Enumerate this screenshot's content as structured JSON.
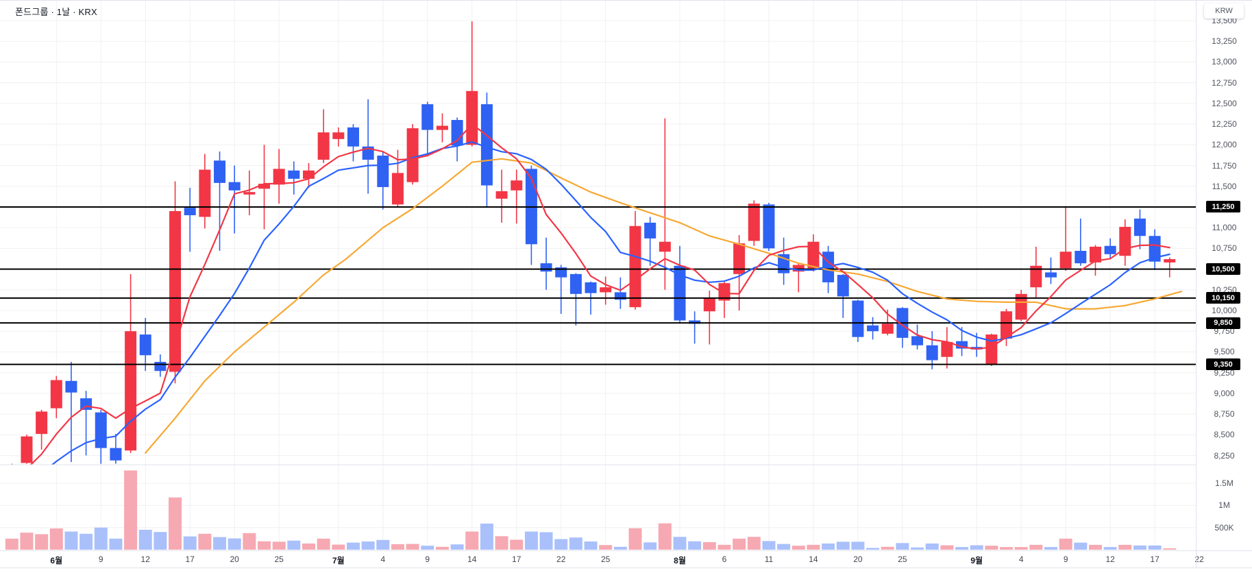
{
  "header": {
    "title": "폰드그룹 · 1날 · KRX"
  },
  "axis": {
    "currency_label": "KRW",
    "price_ticks": [
      {
        "label": "13,500",
        "value": 13500
      },
      {
        "label": "13,250",
        "value": 13250
      },
      {
        "label": "13,000",
        "value": 13000
      },
      {
        "label": "12,750",
        "value": 12750
      },
      {
        "label": "12,500",
        "value": 12500
      },
      {
        "label": "12,250",
        "value": 12250
      },
      {
        "label": "12,000",
        "value": 12000
      },
      {
        "label": "11,750",
        "value": 11750
      },
      {
        "label": "11,500",
        "value": 11500
      },
      {
        "label": "11,000",
        "value": 11000
      },
      {
        "label": "10,750",
        "value": 10750
      },
      {
        "label": "10,250",
        "value": 10250
      },
      {
        "label": "10,000",
        "value": 10000
      },
      {
        "label": "9,750",
        "value": 9750
      },
      {
        "label": "9,500",
        "value": 9500
      },
      {
        "label": "9,250",
        "value": 9250
      },
      {
        "label": "9,000",
        "value": 9000
      },
      {
        "label": "8,750",
        "value": 8750
      },
      {
        "label": "8,500",
        "value": 8500
      },
      {
        "label": "8,250",
        "value": 8250
      }
    ],
    "volume_ticks": [
      {
        "label": "1.5M",
        "value": 1500
      },
      {
        "label": "1M",
        "value": 1000
      },
      {
        "label": "500K",
        "value": 500
      }
    ],
    "time_ticks": [
      {
        "label": "6월",
        "index": 3,
        "month": true
      },
      {
        "label": "9",
        "index": 6
      },
      {
        "label": "12",
        "index": 9
      },
      {
        "label": "17",
        "index": 12
      },
      {
        "label": "20",
        "index": 15
      },
      {
        "label": "25",
        "index": 18
      },
      {
        "label": "7월",
        "index": 22,
        "month": true
      },
      {
        "label": "4",
        "index": 25
      },
      {
        "label": "9",
        "index": 28
      },
      {
        "label": "14",
        "index": 31
      },
      {
        "label": "17",
        "index": 34
      },
      {
        "label": "22",
        "index": 37
      },
      {
        "label": "25",
        "index": 40
      },
      {
        "label": "8월",
        "index": 45,
        "month": true
      },
      {
        "label": "6",
        "index": 48
      },
      {
        "label": "11",
        "index": 51
      },
      {
        "label": "14",
        "index": 54
      },
      {
        "label": "20",
        "index": 57
      },
      {
        "label": "25",
        "index": 60
      },
      {
        "label": "9월",
        "index": 65,
        "month": true
      },
      {
        "label": "4",
        "index": 68
      },
      {
        "label": "9",
        "index": 71
      },
      {
        "label": "12",
        "index": 74
      },
      {
        "label": "17",
        "index": 77
      },
      {
        "label": "22",
        "index": 80
      }
    ]
  },
  "colors": {
    "up": "#f23645",
    "down": "#2f62f2",
    "volume_up": "#f6a9b2",
    "volume_down": "#a9c0fb",
    "ma_fast": "#f23645",
    "ma_mid": "#2962ff",
    "ma_slow": "#f7a833",
    "level_line": "#000000",
    "level_tag_bg": "#000000",
    "level_tag_text": "#ffffff",
    "grid": "#f0f0f3",
    "separator": "#e0e3eb",
    "axis_text": "#50535e"
  },
  "chart_data": {
    "type": "candlestick",
    "title": "폰드그룹",
    "interval": "1날",
    "exchange": "KRX",
    "currency": "KRW",
    "grid": true,
    "price_axis_range": [
      8155,
      13740
    ],
    "volume_axis_range_k": [
      0,
      1940
    ],
    "levels": [
      {
        "label": "11,250",
        "price": 11250
      },
      {
        "label": "10,500",
        "price": 10500
      },
      {
        "label": "10,150",
        "price": 10150
      },
      {
        "label": "9,850",
        "price": 9850
      },
      {
        "label": "9,350",
        "price": 9350
      }
    ],
    "candles_format": [
      "open",
      "high",
      "low",
      "close",
      "volume_k"
    ],
    "candles": [
      [
        8060,
        8150,
        8000,
        8120,
        250
      ],
      [
        8160,
        8500,
        8150,
        8480,
        385
      ],
      [
        8510,
        8800,
        8320,
        8780,
        350
      ],
      [
        8820,
        9210,
        8700,
        9160,
        480
      ],
      [
        9150,
        9380,
        8170,
        9010,
        410
      ],
      [
        8940,
        9030,
        8250,
        8800,
        360
      ],
      [
        8770,
        8800,
        8150,
        8340,
        500
      ],
      [
        8340,
        8510,
        8150,
        8190,
        250
      ],
      [
        8310,
        10440,
        8280,
        9750,
        1790
      ],
      [
        9710,
        9910,
        9270,
        9460,
        450
      ],
      [
        9380,
        9470,
        9200,
        9270,
        400
      ],
      [
        9260,
        11560,
        9120,
        11200,
        1180
      ],
      [
        11240,
        11480,
        10710,
        11150,
        300
      ],
      [
        11130,
        11890,
        10990,
        11700,
        360
      ],
      [
        11810,
        11920,
        10720,
        11540,
        285
      ],
      [
        11550,
        11750,
        10930,
        11450,
        255
      ],
      [
        11400,
        11690,
        11150,
        11430,
        375
      ],
      [
        11470,
        12000,
        10980,
        11530,
        190
      ],
      [
        11520,
        11950,
        11290,
        11710,
        180
      ],
      [
        11690,
        11800,
        11400,
        11590,
        205
      ],
      [
        11590,
        11780,
        11480,
        11690,
        140
      ],
      [
        11820,
        12430,
        11780,
        12150,
        250
      ],
      [
        12070,
        12210,
        11980,
        12150,
        115
      ],
      [
        12210,
        12250,
        11800,
        11980,
        160
      ],
      [
        11980,
        12550,
        11410,
        11820,
        185
      ],
      [
        11870,
        11920,
        11220,
        11490,
        220
      ],
      [
        11280,
        11940,
        11250,
        11660,
        125
      ],
      [
        11550,
        12250,
        11520,
        12200,
        130
      ],
      [
        12490,
        12520,
        11860,
        12180,
        90
      ],
      [
        12180,
        12380,
        12030,
        12230,
        65
      ],
      [
        12300,
        12330,
        11800,
        11990,
        120
      ],
      [
        12000,
        13490,
        11980,
        12650,
        410
      ],
      [
        12490,
        12630,
        11240,
        11510,
        590
      ],
      [
        11350,
        11700,
        11060,
        11440,
        305
      ],
      [
        11450,
        11700,
        11050,
        11570,
        225
      ],
      [
        11710,
        11750,
        10550,
        10800,
        410
      ],
      [
        10570,
        10880,
        10250,
        10470,
        395
      ],
      [
        10520,
        10550,
        9960,
        10400,
        240
      ],
      [
        10440,
        10450,
        9820,
        10200,
        275
      ],
      [
        10340,
        10350,
        9950,
        10210,
        185
      ],
      [
        10220,
        10410,
        10070,
        10280,
        105
      ],
      [
        10220,
        10400,
        10020,
        10130,
        65
      ],
      [
        10040,
        11200,
        10010,
        11020,
        485
      ],
      [
        11060,
        11130,
        10540,
        10870,
        165
      ],
      [
        10710,
        12320,
        10250,
        10830,
        595
      ],
      [
        10540,
        10780,
        9850,
        9880,
        290
      ],
      [
        9880,
        9990,
        9600,
        9840,
        190
      ],
      [
        9990,
        10240,
        9590,
        10150,
        170
      ],
      [
        10120,
        10350,
        9910,
        10330,
        110
      ],
      [
        10440,
        10910,
        10000,
        10810,
        250
      ],
      [
        10840,
        11330,
        10780,
        11290,
        290
      ],
      [
        11280,
        11300,
        10720,
        10750,
        195
      ],
      [
        10680,
        10880,
        10310,
        10450,
        130
      ],
      [
        10470,
        10570,
        10220,
        10550,
        90
      ],
      [
        10510,
        10920,
        10470,
        10830,
        110
      ],
      [
        10710,
        10780,
        10210,
        10340,
        140
      ],
      [
        10430,
        10440,
        9910,
        10170,
        180
      ],
      [
        10120,
        10130,
        9620,
        9680,
        180
      ],
      [
        9820,
        9920,
        9650,
        9750,
        40
      ],
      [
        9720,
        10010,
        9700,
        9840,
        65
      ],
      [
        10030,
        10040,
        9550,
        9670,
        150
      ],
      [
        9690,
        9830,
        9530,
        9580,
        50
      ],
      [
        9580,
        9750,
        9290,
        9400,
        140
      ],
      [
        9440,
        9800,
        9300,
        9620,
        100
      ],
      [
        9630,
        9800,
        9450,
        9540,
        60
      ],
      [
        9560,
        9730,
        9440,
        9530,
        100
      ],
      [
        9350,
        9720,
        9330,
        9710,
        90
      ],
      [
        9660,
        10020,
        9570,
        9990,
        60
      ],
      [
        9890,
        10250,
        9870,
        10200,
        60
      ],
      [
        10280,
        10770,
        10150,
        10540,
        110
      ],
      [
        10460,
        10640,
        10320,
        10400,
        60
      ],
      [
        10510,
        11260,
        10480,
        10710,
        250
      ],
      [
        10720,
        11110,
        10540,
        10570,
        160
      ],
      [
        10580,
        10790,
        10420,
        10770,
        110
      ],
      [
        10780,
        10870,
        10630,
        10680,
        60
      ],
      [
        10660,
        11100,
        10540,
        11010,
        110
      ],
      [
        11110,
        11220,
        10740,
        10900,
        95
      ],
      [
        10900,
        10980,
        10490,
        10590,
        95
      ],
      [
        10580,
        10640,
        10400,
        10620,
        30
      ]
    ],
    "ma": {
      "fast_window": 5,
      "mid_window": 10,
      "ma_seed_closes": [
        7600,
        7650,
        7700,
        7750,
        7800,
        7850,
        7900,
        7950,
        8000
      ],
      "slow_samples": [
        [
          9,
          8280
        ],
        [
          11,
          8700
        ],
        [
          13,
          9150
        ],
        [
          15,
          9500
        ],
        [
          17,
          9800
        ],
        [
          19,
          10100
        ],
        [
          21,
          10430
        ],
        [
          22.5,
          10620
        ],
        [
          25,
          11000
        ],
        [
          27,
          11230
        ],
        [
          29,
          11500
        ],
        [
          31,
          11790
        ],
        [
          33,
          11830
        ],
        [
          35,
          11780
        ],
        [
          37,
          11600
        ],
        [
          39,
          11430
        ],
        [
          41,
          11300
        ],
        [
          43,
          11180
        ],
        [
          45,
          11060
        ],
        [
          47,
          10900
        ],
        [
          49,
          10800
        ],
        [
          51,
          10690
        ],
        [
          53,
          10570
        ],
        [
          55,
          10490
        ],
        [
          57,
          10440
        ],
        [
          59,
          10350
        ],
        [
          61,
          10230
        ],
        [
          63,
          10140
        ],
        [
          65,
          10110
        ],
        [
          67,
          10100
        ],
        [
          69,
          10100
        ],
        [
          71,
          10020
        ],
        [
          73,
          10020
        ],
        [
          75,
          10060
        ],
        [
          77,
          10140
        ],
        [
          78.8,
          10230
        ]
      ]
    }
  }
}
